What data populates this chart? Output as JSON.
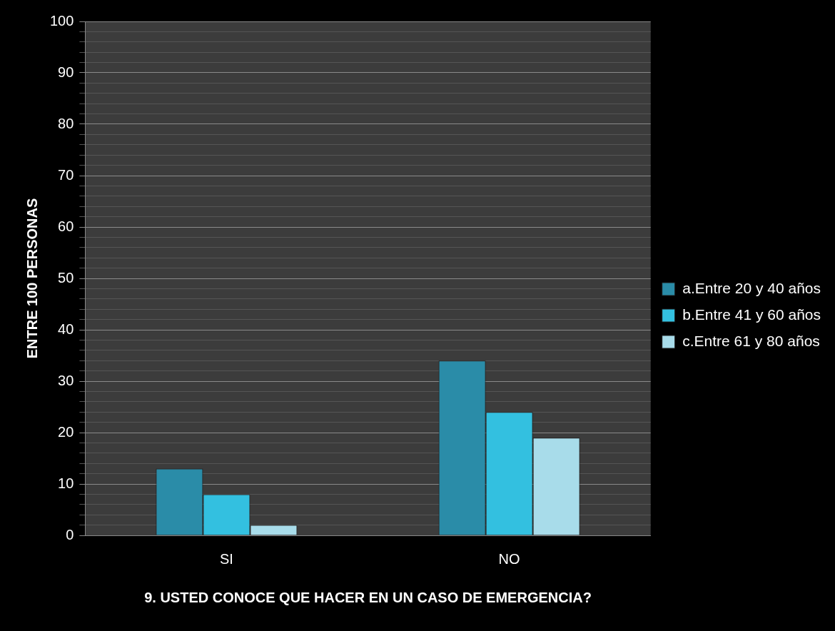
{
  "chart_data": {
    "type": "bar",
    "xlabel": "9. USTED CONOCE QUE HACER EN UN CASO DE EMERGENCIA?",
    "ylabel": "ENTRE 100 PERSONAS",
    "categories": [
      "SI",
      "NO"
    ],
    "series": [
      {
        "name": "a.Entre 20 y 40 años",
        "color": "#2a8ca8",
        "values": [
          13,
          34
        ]
      },
      {
        "name": "b.Entre 41 y 60 años",
        "color": "#33c0e0",
        "values": [
          8,
          24
        ]
      },
      {
        "name": "c.Entre 61 y 80 años",
        "color": "#a8dcea",
        "values": [
          2,
          19
        ]
      }
    ],
    "ylim": [
      0,
      100
    ],
    "yticks": [
      0,
      {
        "value": 2,
        "label": null
      },
      {
        "value": 4,
        "label": null
      },
      {
        "value": 6,
        "label": null
      },
      {
        "value": 8,
        "label": null
      },
      10,
      {
        "value": 12,
        "label": null
      },
      {
        "value": 14,
        "label": null
      },
      {
        "value": 16,
        "label": null
      },
      {
        "value": 18,
        "label": null
      },
      20,
      {
        "value": 22,
        "label": null
      },
      {
        "value": 24,
        "label": null
      },
      {
        "value": 26,
        "label": null
      },
      {
        "value": 28,
        "label": null
      },
      30,
      {
        "value": 32,
        "label": null
      },
      {
        "value": 34,
        "label": null
      },
      {
        "value": 36,
        "label": null
      },
      {
        "value": 38,
        "label": null
      },
      40,
      {
        "value": 42,
        "label": null
      },
      {
        "value": 44,
        "label": null
      },
      {
        "value": 46,
        "label": null
      },
      {
        "value": 48,
        "label": null
      },
      50,
      {
        "value": 52,
        "label": null
      },
      {
        "value": 54,
        "label": null
      },
      {
        "value": 56,
        "label": null
      },
      {
        "value": 58,
        "label": null
      },
      60,
      {
        "value": 62,
        "label": null
      },
      {
        "value": 64,
        "label": null
      },
      {
        "value": 66,
        "label": null
      },
      {
        "value": 68,
        "label": null
      },
      70,
      {
        "value": 72,
        "label": null
      },
      {
        "value": 74,
        "label": null
      },
      {
        "value": 76,
        "label": null
      },
      {
        "value": 78,
        "label": null
      },
      80,
      {
        "value": 82,
        "label": null
      },
      {
        "value": 84,
        "label": null
      },
      {
        "value": 86,
        "label": null
      },
      {
        "value": 88,
        "label": null
      },
      90,
      {
        "value": 92,
        "label": null
      },
      {
        "value": 94,
        "label": null
      },
      {
        "value": 96,
        "label": null
      },
      {
        "value": 98,
        "label": null
      },
      100
    ],
    "grid": true,
    "legend": "right"
  }
}
